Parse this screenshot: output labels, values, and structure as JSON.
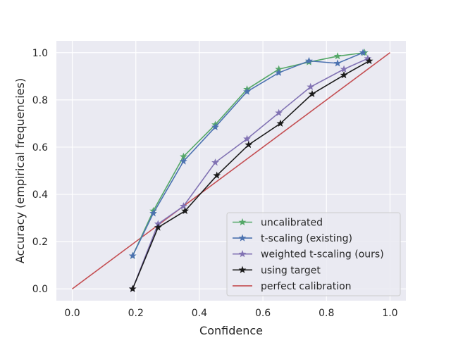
{
  "chart_data": {
    "type": "line",
    "xlabel": "Confidence",
    "ylabel": "Accuracy (empirical frequencies)",
    "xlim": [
      -0.05,
      1.05
    ],
    "ylim": [
      -0.05,
      1.05
    ],
    "x_ticks": [
      "0.0",
      "0.2",
      "0.4",
      "0.6",
      "0.8",
      "1.0"
    ],
    "y_ticks": [
      "0.0",
      "0.2",
      "0.4",
      "0.6",
      "0.8",
      "1.0"
    ],
    "grid": true,
    "legend_position": "bottom-right",
    "background_color": "#eaeaf2",
    "series": [
      {
        "name": "uncalibrated",
        "color": "#55a868",
        "marker": "star",
        "points": [
          [
            0.19,
            0.14
          ],
          [
            0.255,
            0.33
          ],
          [
            0.35,
            0.56
          ],
          [
            0.45,
            0.695
          ],
          [
            0.55,
            0.845
          ],
          [
            0.65,
            0.93
          ],
          [
            0.745,
            0.96
          ],
          [
            0.835,
            0.985
          ],
          [
            0.92,
            1.0
          ]
        ]
      },
      {
        "name": "t-scaling (existing)",
        "color": "#4c72b0",
        "marker": "star",
        "points": [
          [
            0.19,
            0.14
          ],
          [
            0.255,
            0.32
          ],
          [
            0.35,
            0.54
          ],
          [
            0.45,
            0.685
          ],
          [
            0.55,
            0.835
          ],
          [
            0.65,
            0.915
          ],
          [
            0.745,
            0.965
          ],
          [
            0.835,
            0.955
          ],
          [
            0.915,
            1.0
          ]
        ]
      },
      {
        "name": "weighted t-scaling (ours)",
        "color": "#8172b3",
        "marker": "star",
        "points": [
          [
            0.19,
            0.0
          ],
          [
            0.27,
            0.275
          ],
          [
            0.35,
            0.35
          ],
          [
            0.45,
            0.535
          ],
          [
            0.55,
            0.635
          ],
          [
            0.65,
            0.745
          ],
          [
            0.75,
            0.855
          ],
          [
            0.855,
            0.93
          ],
          [
            0.93,
            0.975
          ]
        ]
      },
      {
        "name": "using target",
        "color": "#1a1a1a",
        "marker": "star",
        "points": [
          [
            0.19,
            0.0
          ],
          [
            0.27,
            0.26
          ],
          [
            0.355,
            0.33
          ],
          [
            0.455,
            0.48
          ],
          [
            0.555,
            0.61
          ],
          [
            0.655,
            0.7
          ],
          [
            0.755,
            0.825
          ],
          [
            0.855,
            0.905
          ],
          [
            0.935,
            0.965
          ]
        ]
      },
      {
        "name": "perfect calibration",
        "color": "#c44e52",
        "marker": "none",
        "points": [
          [
            0.0,
            0.0
          ],
          [
            1.0,
            1.0
          ]
        ]
      }
    ]
  }
}
